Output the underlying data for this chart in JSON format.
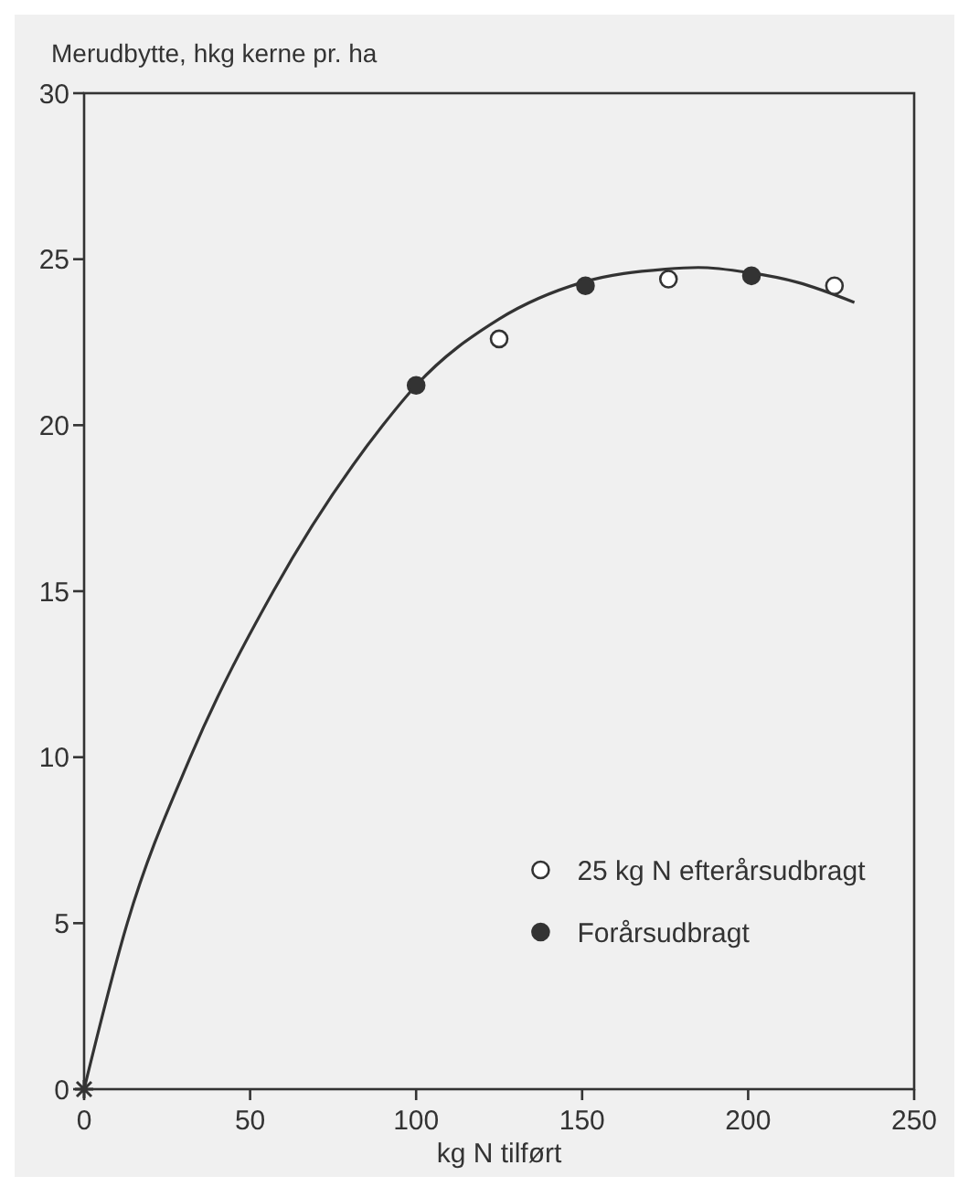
{
  "chart_data": {
    "type": "scatter",
    "ylabel": "Merudbytte, hkg kerne pr. ha",
    "xlabel": "kg N tilført",
    "xlim": [
      0,
      250
    ],
    "ylim": [
      0,
      30
    ],
    "xticks": [
      0,
      50,
      100,
      150,
      200,
      250
    ],
    "yticks": [
      0,
      5,
      10,
      15,
      20,
      25,
      30
    ],
    "grid": false,
    "legend": "bottom right",
    "series": [
      {
        "type": "line",
        "color": "#333333",
        "marker": "none",
        "x": [
          0,
          13,
          32,
          57,
          90,
          100,
          125,
          150,
          175,
          185,
          200,
          215,
          232
        ],
        "values": [
          0,
          5,
          10,
          15,
          20,
          21.2,
          23.2,
          24.3,
          24.7,
          24.75,
          24.6,
          24.3,
          23.7
        ]
      },
      {
        "name": "25 kg N efterårsudbragt",
        "color": "#ffffff",
        "marker": "circle",
        "x": [
          125,
          176,
          226
        ],
        "values": [
          22.6,
          24.4,
          24.2
        ]
      },
      {
        "name": "Forårsudbragt",
        "color": "#333333",
        "marker": "circle",
        "x": [
          100,
          151,
          201
        ],
        "values": [
          21.2,
          24.2,
          24.5
        ]
      },
      {
        "color": "#333333",
        "marker": "cross",
        "x": [
          0
        ],
        "values": [
          0
        ]
      }
    ]
  }
}
